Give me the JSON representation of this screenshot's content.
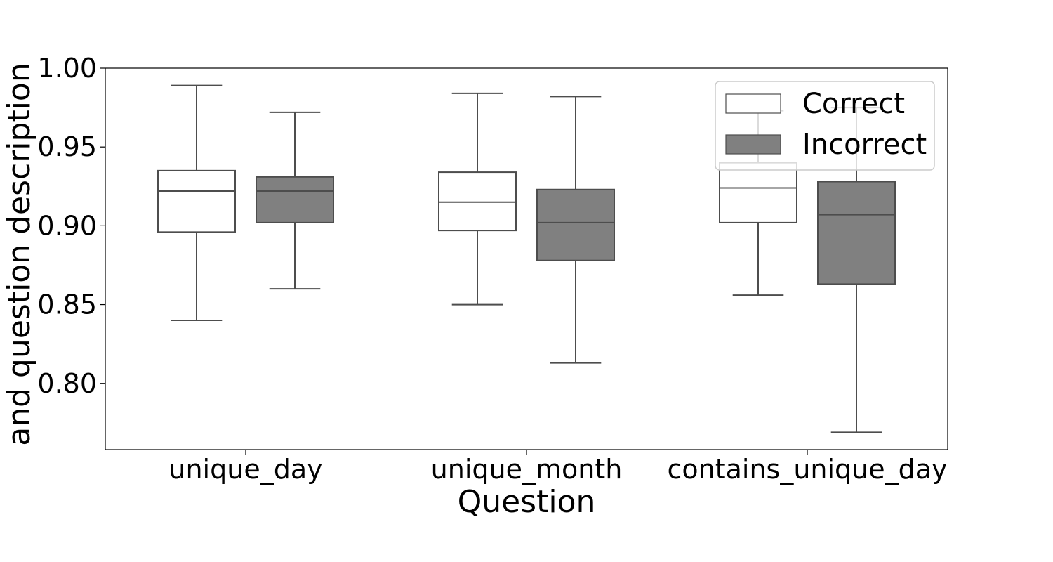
{
  "chart_data": {
    "type": "box",
    "xlabel": "Question",
    "ylabel": "and question description",
    "categories": [
      "unique_day",
      "unique_month",
      "contains_unique_day"
    ],
    "ylim": [
      0.758,
      1.0
    ],
    "yticks": [
      "1.00",
      "0.95",
      "0.90",
      "0.85",
      "0.80"
    ],
    "ytick_values": [
      1.0,
      0.95,
      0.9,
      0.85,
      0.8
    ],
    "legend_position": "top-right",
    "series": [
      {
        "name": "Correct",
        "color": "#ffffff",
        "boxes": [
          {
            "whisker_low": 0.84,
            "q1": 0.896,
            "median": 0.922,
            "q3": 0.935,
            "whisker_high": 0.989
          },
          {
            "whisker_low": 0.85,
            "q1": 0.897,
            "median": 0.915,
            "q3": 0.934,
            "whisker_high": 0.984
          },
          {
            "whisker_low": 0.856,
            "q1": 0.902,
            "median": 0.924,
            "q3": 0.94,
            "whisker_high": 0.973
          }
        ]
      },
      {
        "name": "Incorrect",
        "color": "#808080",
        "boxes": [
          {
            "whisker_low": 0.86,
            "q1": 0.902,
            "median": 0.922,
            "q3": 0.931,
            "whisker_high": 0.972
          },
          {
            "whisker_low": 0.813,
            "q1": 0.878,
            "median": 0.902,
            "q3": 0.923,
            "whisker_high": 0.982
          },
          {
            "whisker_low": 0.769,
            "q1": 0.863,
            "median": 0.907,
            "q3": 0.928,
            "whisker_high": 0.975
          }
        ]
      }
    ]
  }
}
